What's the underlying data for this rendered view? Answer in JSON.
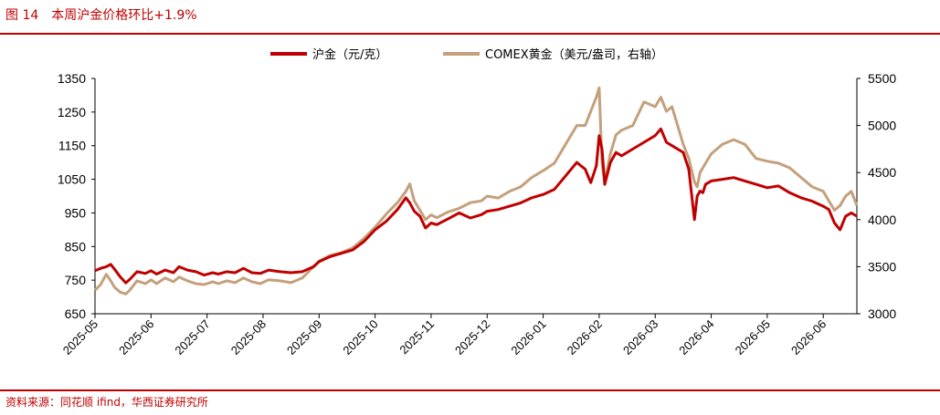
{
  "header": {
    "title": "图 14　本周沪金价格环比+1.9%"
  },
  "footer": {
    "source": "资料来源：同花顺 ifind，华西证券研究所"
  },
  "colors": {
    "accent": "#C00000",
    "series_left": "#C00000",
    "series_right": "#C4A07C"
  },
  "chart_data": {
    "type": "line",
    "legend_position": "top-center",
    "grid": false,
    "x_tick_labels": [
      "2025-05",
      "2025-06",
      "2025-07",
      "2025-08",
      "2025-09",
      "2025-10",
      "2025-11",
      "2025-12",
      "2026-01",
      "2026-02",
      "2026-03",
      "2026-04",
      "2026-05",
      "2026-06"
    ],
    "x_range": [
      0,
      13.6
    ],
    "y_left": {
      "ticks": [
        "1350",
        "1250",
        "1150",
        "1050",
        "950",
        "850",
        "750",
        "650"
      ],
      "range": [
        650,
        1350
      ]
    },
    "y_right": {
      "ticks": [
        "5500",
        "5000",
        "4500",
        "4000",
        "3500",
        "3000"
      ],
      "range": [
        3000,
        5500
      ]
    },
    "series": [
      {
        "name": "沪金（元/克）",
        "axis": "left",
        "x": [
          0,
          0.1,
          0.2,
          0.28,
          0.35,
          0.45,
          0.55,
          0.62,
          0.75,
          0.9,
          1.0,
          1.1,
          1.25,
          1.4,
          1.5,
          1.65,
          1.8,
          1.95,
          2.1,
          2.2,
          2.35,
          2.5,
          2.65,
          2.8,
          2.95,
          3.1,
          3.3,
          3.5,
          3.7,
          3.9,
          4.0,
          4.2,
          4.4,
          4.6,
          4.8,
          5.0,
          5.2,
          5.4,
          5.55,
          5.62,
          5.7,
          5.8,
          5.9,
          6.0,
          6.1,
          6.3,
          6.5,
          6.7,
          6.9,
          7.0,
          7.2,
          7.4,
          7.6,
          7.8,
          8.0,
          8.2,
          8.4,
          8.6,
          8.75,
          8.85,
          8.95,
          9.0,
          9.05,
          9.1,
          9.2,
          9.3,
          9.4,
          9.6,
          9.8,
          10.0,
          10.1,
          10.2,
          10.3,
          10.5,
          10.6,
          10.7,
          10.75,
          10.8,
          10.85,
          10.9,
          11.0,
          11.2,
          11.4,
          11.6,
          11.8,
          12.0,
          12.2,
          12.4,
          12.6,
          12.8,
          13.0,
          13.1,
          13.2,
          13.3,
          13.4,
          13.5,
          13.6
        ],
        "values": [
          778,
          785,
          790,
          797,
          782,
          760,
          742,
          752,
          775,
          770,
          778,
          768,
          780,
          772,
          790,
          780,
          775,
          765,
          772,
          768,
          775,
          772,
          785,
          772,
          770,
          780,
          775,
          772,
          775,
          790,
          805,
          820,
          830,
          840,
          865,
          900,
          925,
          960,
          995,
          980,
          955,
          940,
          905,
          920,
          915,
          932,
          950,
          935,
          945,
          955,
          960,
          970,
          980,
          995,
          1005,
          1020,
          1060,
          1100,
          1080,
          1040,
          1090,
          1180,
          1140,
          1035,
          1100,
          1130,
          1120,
          1140,
          1160,
          1180,
          1200,
          1160,
          1150,
          1130,
          1080,
          930,
          1000,
          1015,
          1010,
          1035,
          1045,
          1050,
          1055,
          1045,
          1035,
          1025,
          1030,
          1010,
          995,
          985,
          970,
          960,
          920,
          900,
          940,
          950,
          940
        ]
      },
      {
        "name": "COMEX黄金（美元/盎司，右轴）",
        "axis": "right",
        "x": [
          0,
          0.1,
          0.2,
          0.28,
          0.35,
          0.45,
          0.55,
          0.62,
          0.75,
          0.9,
          1.0,
          1.1,
          1.25,
          1.4,
          1.5,
          1.65,
          1.8,
          1.95,
          2.1,
          2.2,
          2.35,
          2.5,
          2.65,
          2.8,
          2.95,
          3.1,
          3.3,
          3.5,
          3.7,
          3.9,
          4.0,
          4.2,
          4.4,
          4.6,
          4.8,
          5.0,
          5.2,
          5.4,
          5.55,
          5.62,
          5.7,
          5.8,
          5.9,
          6.0,
          6.1,
          6.3,
          6.5,
          6.7,
          6.9,
          7.0,
          7.2,
          7.4,
          7.6,
          7.8,
          8.0,
          8.2,
          8.4,
          8.6,
          8.75,
          8.85,
          8.95,
          9.0,
          9.05,
          9.1,
          9.2,
          9.3,
          9.4,
          9.6,
          9.8,
          10.0,
          10.1,
          10.2,
          10.3,
          10.5,
          10.6,
          10.7,
          10.75,
          10.8,
          10.85,
          10.9,
          11.0,
          11.2,
          11.4,
          11.6,
          11.8,
          12.0,
          12.2,
          12.4,
          12.6,
          12.8,
          13.0,
          13.1,
          13.2,
          13.3,
          13.4,
          13.5,
          13.6
        ],
        "values": [
          3250,
          3310,
          3420,
          3350,
          3280,
          3230,
          3210,
          3250,
          3350,
          3320,
          3360,
          3320,
          3380,
          3340,
          3390,
          3350,
          3320,
          3310,
          3340,
          3320,
          3350,
          3330,
          3380,
          3340,
          3320,
          3360,
          3350,
          3330,
          3380,
          3500,
          3560,
          3620,
          3650,
          3700,
          3800,
          3920,
          4060,
          4180,
          4300,
          4380,
          4200,
          4100,
          4000,
          4050,
          4020,
          4080,
          4120,
          4180,
          4200,
          4250,
          4230,
          4300,
          4350,
          4450,
          4520,
          4600,
          4800,
          5000,
          5000,
          5150,
          5300,
          5400,
          4600,
          4400,
          4700,
          4900,
          4950,
          5000,
          5250,
          5200,
          5300,
          5150,
          5200,
          4800,
          4650,
          4400,
          4350,
          4500,
          4550,
          4600,
          4700,
          4800,
          4850,
          4800,
          4650,
          4620,
          4600,
          4550,
          4450,
          4350,
          4300,
          4200,
          4100,
          4150,
          4250,
          4300,
          4150
        ]
      }
    ]
  }
}
